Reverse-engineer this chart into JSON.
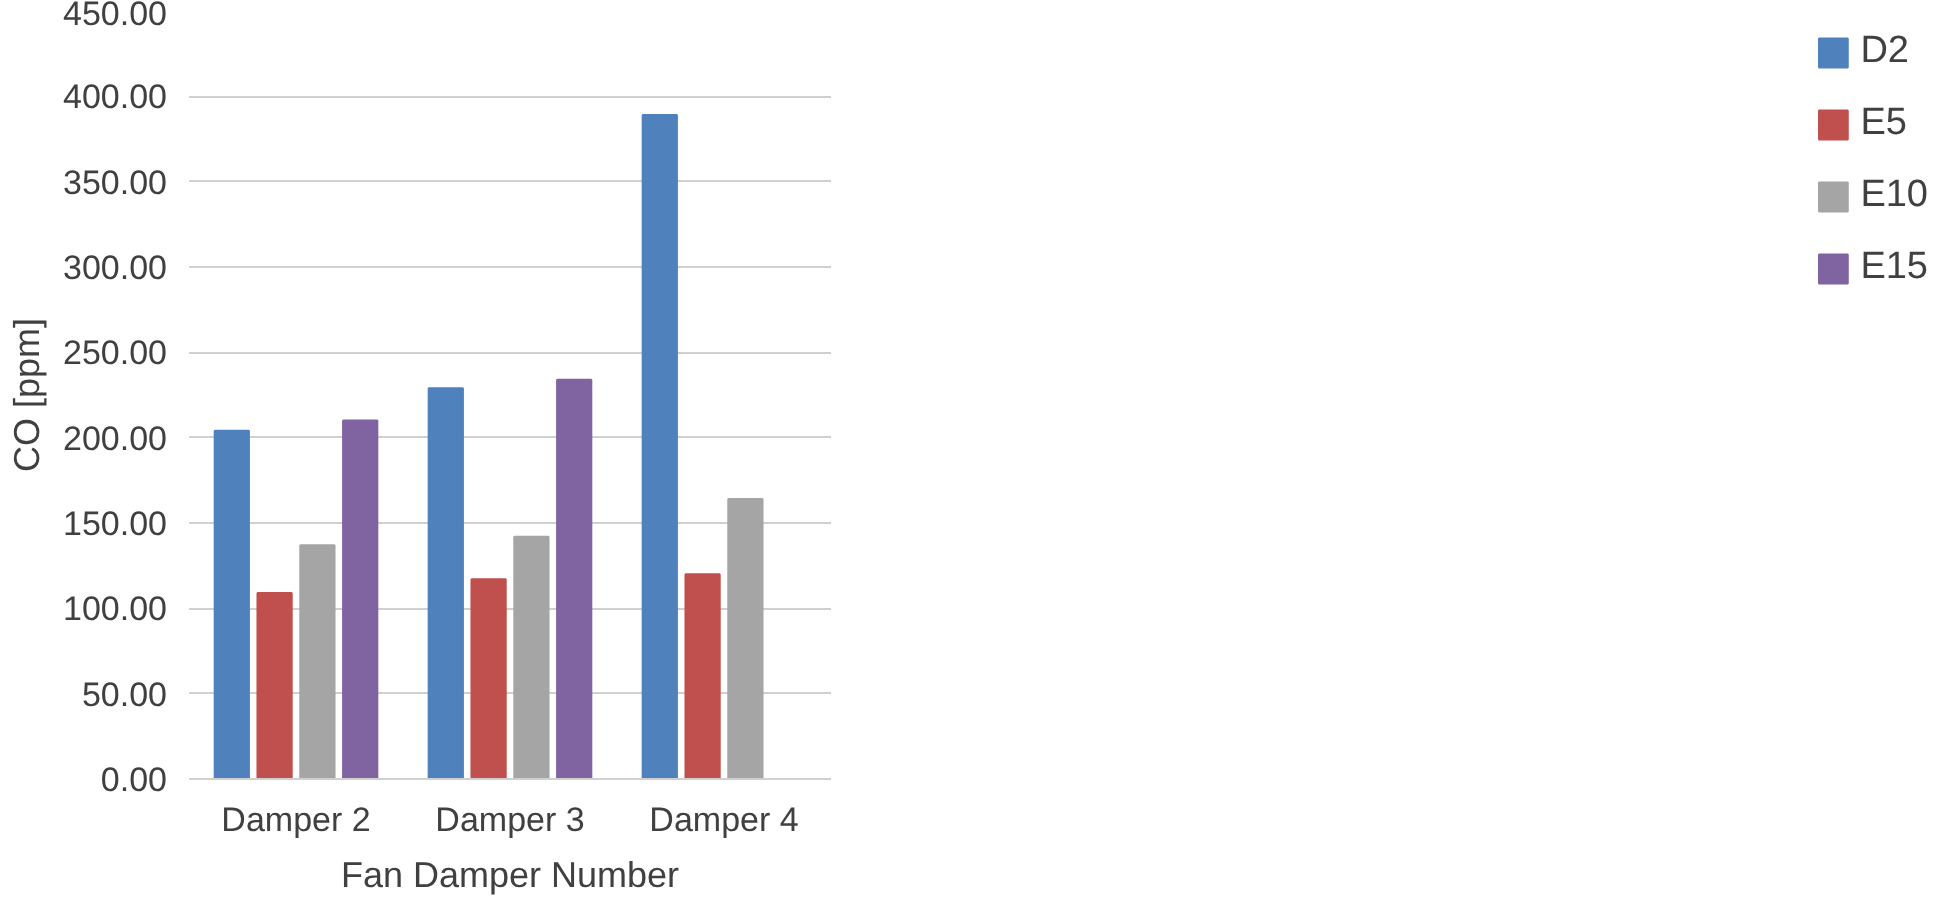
{
  "chart_data": {
    "type": "bar",
    "xlabel": "Fan Damper Number",
    "ylabel": "CO [ppm]",
    "categories": [
      "Damper 2",
      "Damper 3",
      "Damper 4"
    ],
    "series": [
      {
        "name": "D2",
        "color": "#4f81bd",
        "values": [
          204,
          229,
          389
        ]
      },
      {
        "name": "E5",
        "color": "#c0504d",
        "values": [
          109,
          117,
          120
        ]
      },
      {
        "name": "E10",
        "color": "#a5a5a5",
        "values": [
          137,
          142,
          164
        ]
      },
      {
        "name": "E15",
        "color": "#8064a2",
        "values": [
          210,
          234,
          null
        ]
      }
    ],
    "ylim": [
      0,
      450
    ],
    "yticks": [
      {
        "value": 0,
        "label": "0.00"
      },
      {
        "value": 50,
        "label": "50.00"
      },
      {
        "value": 100,
        "label": "100.00"
      },
      {
        "value": 150,
        "label": "150.00"
      },
      {
        "value": 200,
        "label": "200.00"
      },
      {
        "value": 250,
        "label": "250.00"
      },
      {
        "value": 300,
        "label": "300.00"
      },
      {
        "value": 350,
        "label": "350.00"
      },
      {
        "value": 400,
        "label": "400.00"
      },
      {
        "value": 450,
        "label": "450.00"
      }
    ],
    "grid": "y",
    "legend": "right"
  }
}
